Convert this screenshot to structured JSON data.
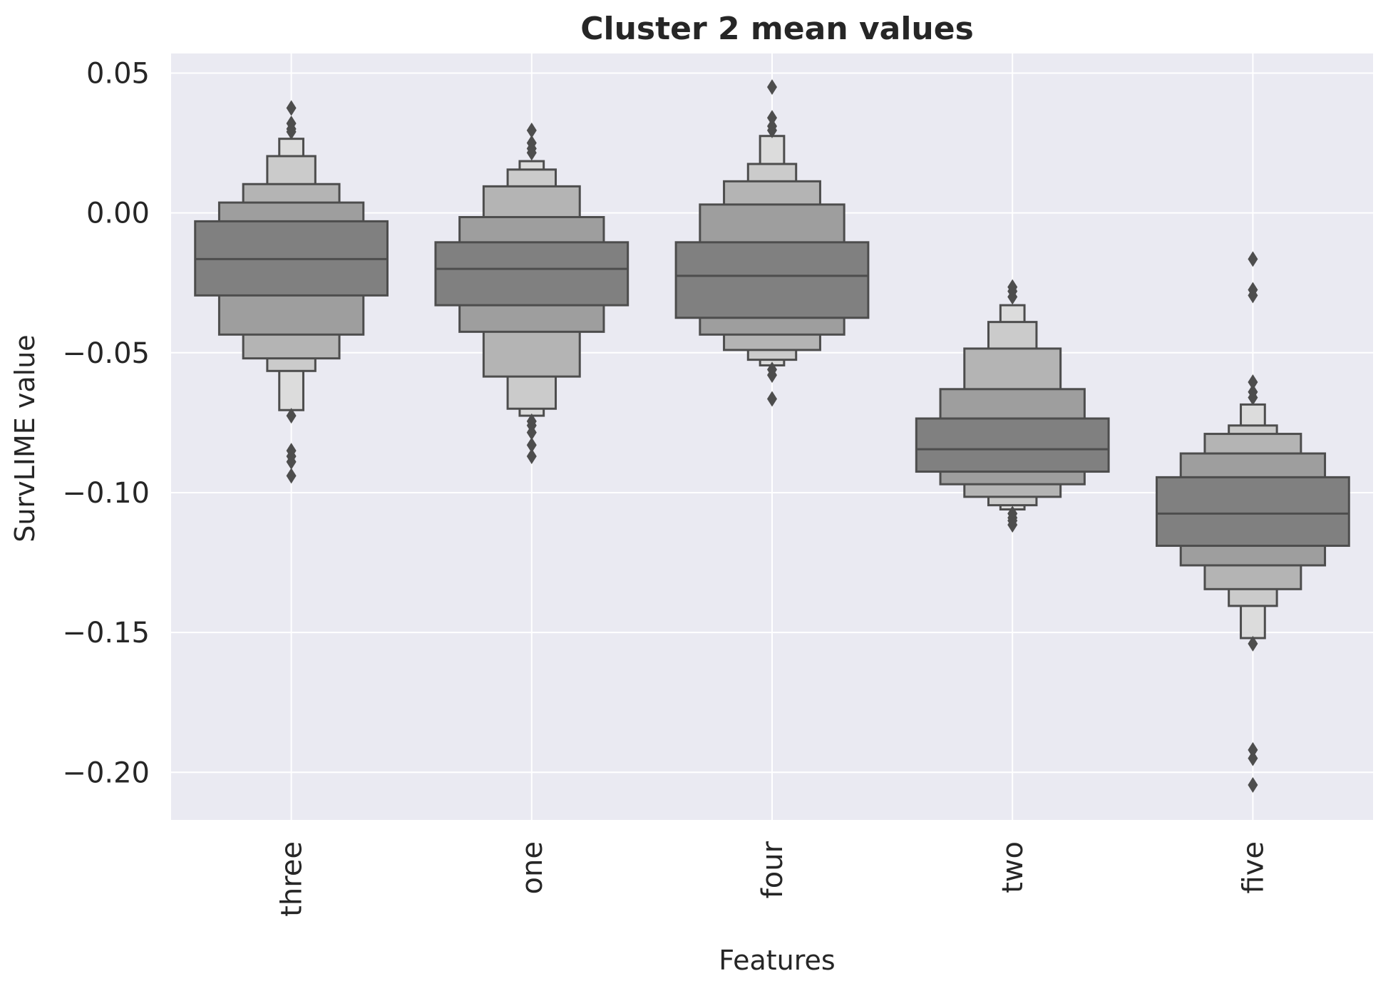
{
  "chart_data": {
    "type": "boxen",
    "title": "Cluster 2 mean values",
    "xlabel": "Features",
    "ylabel": "SurvLIME value",
    "categories": [
      "three",
      "one",
      "four",
      "two",
      "five"
    ],
    "ylim": [
      -0.217,
      0.057
    ],
    "yticks": [
      0.05,
      0.0,
      -0.05,
      -0.1,
      -0.15,
      -0.2
    ],
    "ytick_labels": [
      "0.05",
      "0.00",
      "−0.05",
      "−0.10",
      "−0.15",
      "−0.20"
    ],
    "grid": true,
    "colors": {
      "background": "#eaeaf2",
      "grid": "#ffffff",
      "edge": "#4d4d4d",
      "box_level_1": "#808080",
      "box_level_2": "#9e9e9e",
      "box_level_3": "#b4b4b4",
      "box_level_4": "#cbcbcb",
      "box_level_5": "#dcdcdc",
      "box_level_6": "#ebebeb"
    },
    "series": [
      {
        "category": "three",
        "median": -0.0165,
        "boxes": [
          {
            "low": -0.0295,
            "high": -0.003
          },
          {
            "low": -0.0435,
            "high": 0.0037
          },
          {
            "low": -0.052,
            "high": 0.0103
          },
          {
            "low": -0.0565,
            "high": 0.0203
          },
          {
            "low": -0.0705,
            "high": 0.0265
          }
        ],
        "outliers": [
          0.0375,
          0.032,
          0.03,
          0.029,
          -0.0725,
          -0.085,
          -0.087,
          -0.089,
          -0.094
        ]
      },
      {
        "category": "one",
        "median": -0.02,
        "boxes": [
          {
            "low": -0.033,
            "high": -0.0105
          },
          {
            "low": -0.0425,
            "high": -0.0015
          },
          {
            "low": -0.0585,
            "high": 0.0095
          },
          {
            "low": -0.07,
            "high": 0.0155
          },
          {
            "low": -0.0725,
            "high": 0.0185
          }
        ],
        "outliers": [
          0.0295,
          0.025,
          0.023,
          0.0215,
          -0.0745,
          -0.076,
          -0.0785,
          -0.083,
          -0.087
        ]
      },
      {
        "category": "four",
        "median": -0.0225,
        "boxes": [
          {
            "low": -0.0375,
            "high": -0.0105
          },
          {
            "low": -0.0435,
            "high": 0.003
          },
          {
            "low": -0.049,
            "high": 0.0113
          },
          {
            "low": -0.0525,
            "high": 0.0175
          },
          {
            "low": -0.0545,
            "high": 0.0275
          }
        ],
        "outliers": [
          0.045,
          0.034,
          0.031,
          0.0295,
          -0.056,
          -0.058,
          -0.0665
        ]
      },
      {
        "category": "two",
        "median": -0.0845,
        "boxes": [
          {
            "low": -0.0925,
            "high": -0.0735
          },
          {
            "low": -0.097,
            "high": -0.063
          },
          {
            "low": -0.1015,
            "high": -0.0485
          },
          {
            "low": -0.1045,
            "high": -0.039
          },
          {
            "low": -0.106,
            "high": -0.033
          }
        ],
        "outliers": [
          -0.0265,
          -0.028,
          -0.03,
          -0.1075,
          -0.109,
          -0.11,
          -0.1115
        ]
      },
      {
        "category": "five",
        "median": -0.1075,
        "boxes": [
          {
            "low": -0.119,
            "high": -0.0945
          },
          {
            "low": -0.126,
            "high": -0.086
          },
          {
            "low": -0.1345,
            "high": -0.079
          },
          {
            "low": -0.1405,
            "high": -0.076
          },
          {
            "low": -0.152,
            "high": -0.0685
          }
        ],
        "outliers": [
          -0.0165,
          -0.0275,
          -0.0295,
          -0.0605,
          -0.064,
          -0.066,
          -0.154,
          -0.192,
          -0.195,
          -0.2045
        ]
      }
    ]
  }
}
